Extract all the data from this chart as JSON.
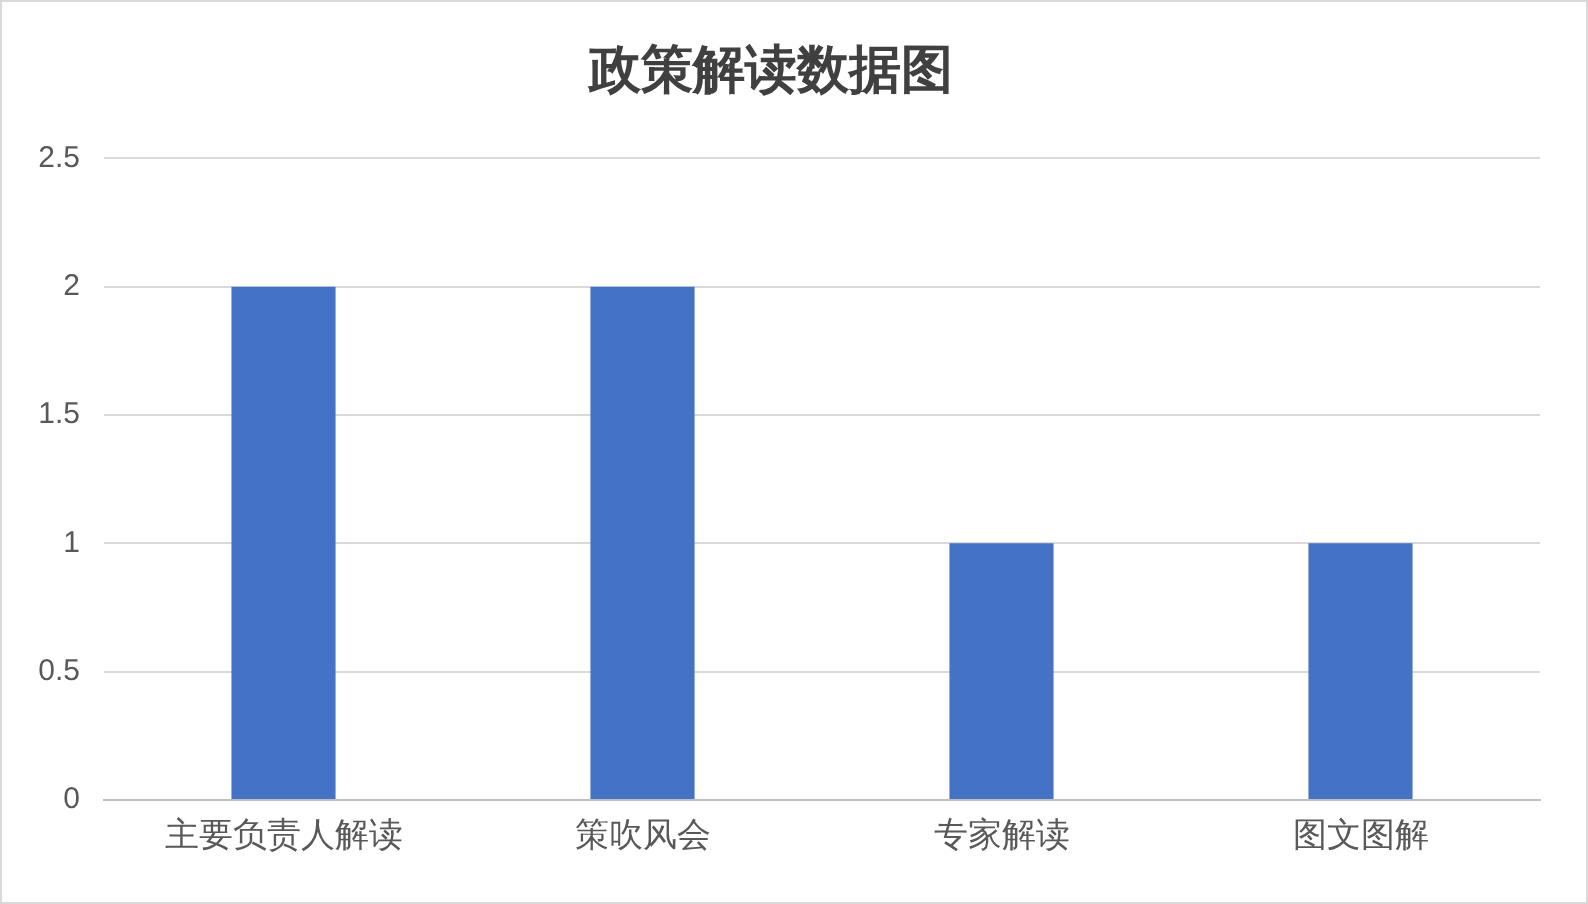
{
  "chart_data": {
    "type": "bar",
    "title": "政策解读数据图",
    "categories": [
      "主要负责人解读",
      "策吹风会",
      "专家解读",
      "图文图解"
    ],
    "values": [
      2,
      2,
      1,
      1
    ],
    "color": "#4472c4",
    "ylim": [
      0,
      2.5
    ],
    "yticks": [
      0,
      0.5,
      1,
      1.5,
      2,
      2.5
    ],
    "grid": "y"
  }
}
